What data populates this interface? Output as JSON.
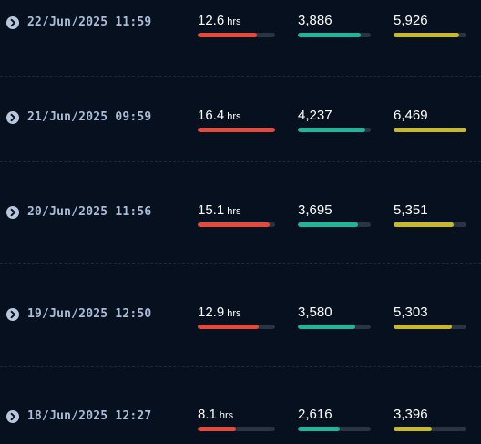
{
  "colors": {
    "sleep": "#e4493c",
    "steps": "#1fb59a",
    "calories": "#c9b92a",
    "track": "#2a3442"
  },
  "icons": {
    "expand": "chevron-right-circle-icon"
  },
  "rows": [
    {
      "timestamp": "22/Jun/2025 11:59",
      "sleep": {
        "value": "12.6",
        "unit": "hrs",
        "fill": 0.76
      },
      "steps": {
        "value": "3,886",
        "fill": 0.86
      },
      "calories": {
        "value": "5,926",
        "fill": 0.9
      }
    },
    {
      "timestamp": "21/Jun/2025 09:59",
      "sleep": {
        "value": "16.4",
        "unit": "hrs",
        "fill": 1.0
      },
      "steps": {
        "value": "4,237",
        "fill": 0.92
      },
      "calories": {
        "value": "6,469",
        "fill": 1.0
      }
    },
    {
      "timestamp": "20/Jun/2025 11:56",
      "sleep": {
        "value": "15.1",
        "unit": "hrs",
        "fill": 0.93
      },
      "steps": {
        "value": "3,695",
        "fill": 0.82
      },
      "calories": {
        "value": "5,351",
        "fill": 0.82
      }
    },
    {
      "timestamp": "19/Jun/2025 12:50",
      "sleep": {
        "value": "12.9",
        "unit": "hrs",
        "fill": 0.79
      },
      "steps": {
        "value": "3,580",
        "fill": 0.79
      },
      "calories": {
        "value": "5,303",
        "fill": 0.8
      }
    },
    {
      "timestamp": "18/Jun/2025 12:27",
      "sleep": {
        "value": "8.1",
        "unit": "hrs",
        "fill": 0.49
      },
      "steps": {
        "value": "2,616",
        "fill": 0.57
      },
      "calories": {
        "value": "3,396",
        "fill": 0.52
      }
    }
  ]
}
